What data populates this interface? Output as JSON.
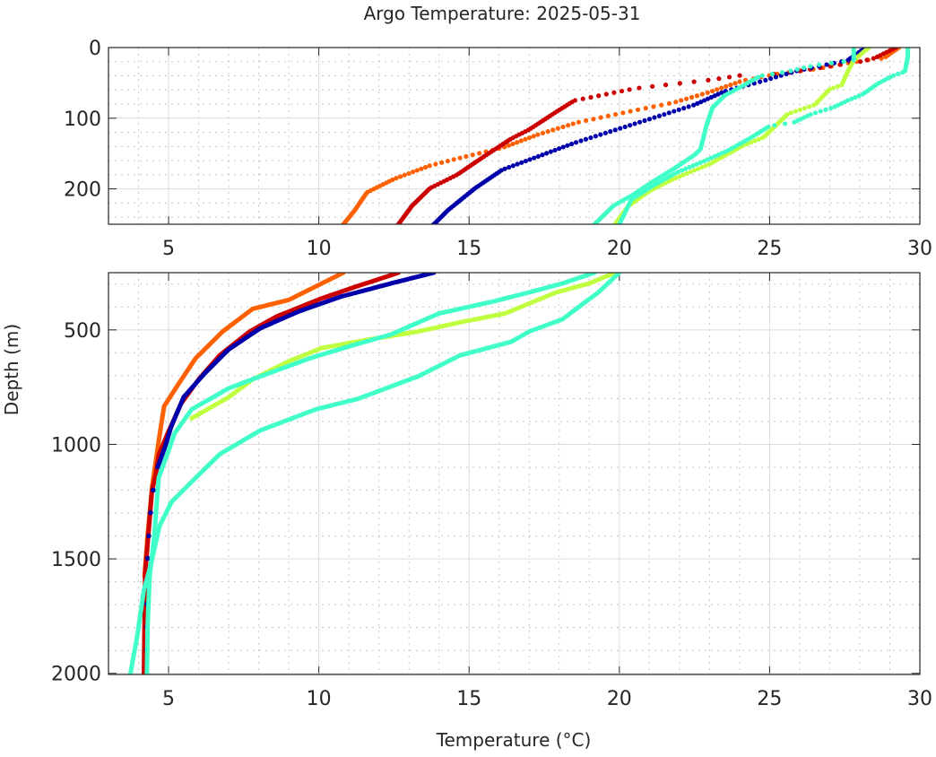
{
  "chart_data": {
    "type": "scatter",
    "title": "Argo Temperature: 2025-05-31",
    "xlabel": "Temperature (°C)",
    "ylabel": "Depth (m)",
    "grid": true,
    "panels": [
      {
        "name": "upper",
        "xlim": [
          3,
          30
        ],
        "ylim": [
          0,
          250
        ],
        "xticks": [
          5,
          10,
          15,
          20,
          25,
          30
        ],
        "yticks": [
          0,
          100,
          200
        ],
        "yminor_step": 20
      },
      {
        "name": "lower",
        "xlim": [
          3,
          30
        ],
        "ylim": [
          250,
          2005
        ],
        "xticks": [
          5,
          10,
          15,
          20,
          25,
          30
        ],
        "yticks": [
          500,
          1000,
          1500,
          2000
        ],
        "yminor_step": 100
      }
    ],
    "xminor_step": 1,
    "series": [
      {
        "name": "profile-orange",
        "color": "#ff6000",
        "points": [
          [
            29.3,
            0
          ],
          [
            28.8,
            15
          ],
          [
            28.0,
            19
          ],
          [
            26.6,
            30
          ],
          [
            25.3,
            37
          ],
          [
            24.1,
            47
          ],
          [
            23.0,
            63
          ],
          [
            21.8,
            78
          ],
          [
            20.5,
            89
          ],
          [
            18.6,
            106
          ],
          [
            17.3,
            123
          ],
          [
            16.1,
            142
          ],
          [
            14.9,
            154
          ],
          [
            13.7,
            167
          ],
          [
            12.5,
            186
          ],
          [
            11.6,
            205
          ],
          [
            11.2,
            230
          ],
          [
            10.8,
            251
          ],
          [
            10.1,
            297
          ],
          [
            9.0,
            369
          ],
          [
            7.8,
            408
          ],
          [
            6.8,
            507
          ],
          [
            5.9,
            624
          ],
          [
            5.3,
            742
          ],
          [
            4.85,
            834
          ],
          [
            4.68,
            978
          ],
          [
            4.45,
            1187
          ],
          [
            4.3,
            1400
          ],
          [
            4.2,
            1576
          ]
        ]
      },
      {
        "name": "profile-red",
        "color": "#cc0000",
        "points": [
          [
            29.2,
            0
          ],
          [
            28.5,
            15
          ],
          [
            28.0,
            20
          ],
          [
            25.4,
            37
          ],
          [
            24.1,
            39
          ],
          [
            23.0,
            46
          ],
          [
            21.5,
            53
          ],
          [
            20.5,
            58
          ],
          [
            19.1,
            70
          ],
          [
            18.5,
            75
          ],
          [
            17.9,
            91
          ],
          [
            17.0,
            116
          ],
          [
            16.4,
            129
          ],
          [
            15.5,
            154
          ],
          [
            14.6,
            180
          ],
          [
            13.7,
            199
          ],
          [
            13.1,
            224
          ],
          [
            12.63,
            251
          ],
          [
            11.26,
            310
          ],
          [
            10.1,
            362
          ],
          [
            8.6,
            441
          ],
          [
            7.7,
            507
          ],
          [
            6.7,
            611
          ],
          [
            6.0,
            716
          ],
          [
            5.42,
            821
          ],
          [
            4.97,
            952
          ],
          [
            4.68,
            1043
          ],
          [
            4.57,
            1135
          ],
          [
            4.45,
            1200
          ],
          [
            4.22,
            1564
          ],
          [
            4.18,
            2000
          ]
        ]
      },
      {
        "name": "profile-blue",
        "color": "#0000aa",
        "points": [
          [
            28.2,
            0
          ],
          [
            27.6,
            18
          ],
          [
            25.9,
            33
          ],
          [
            24.8,
            47
          ],
          [
            23.5,
            62
          ],
          [
            22.5,
            81
          ],
          [
            20.5,
            108
          ],
          [
            18.5,
            135
          ],
          [
            17.3,
            154
          ],
          [
            16.1,
            173
          ],
          [
            15.2,
            199
          ],
          [
            14.3,
            230
          ],
          [
            13.83,
            250
          ],
          [
            12.4,
            297
          ],
          [
            10.7,
            356
          ],
          [
            9.3,
            421
          ],
          [
            8.05,
            493
          ],
          [
            7.0,
            585
          ],
          [
            6.2,
            690
          ],
          [
            5.5,
            794
          ],
          [
            5.08,
            925
          ],
          [
            4.9,
            1004
          ],
          [
            4.64,
            1099
          ],
          [
            4.49,
            1200
          ],
          [
            4.4,
            1298
          ],
          [
            4.34,
            1400
          ],
          [
            4.31,
            1498
          ],
          [
            4.29,
            1600
          ],
          [
            4.28,
            1697
          ],
          [
            4.28,
            1797
          ],
          [
            4.28,
            1897
          ]
        ],
        "sparse_below": 1100
      },
      {
        "name": "profile-yellowgreen",
        "color": "#c0ff40",
        "points": [
          [
            28.3,
            0
          ],
          [
            27.8,
            18
          ],
          [
            27.6,
            34
          ],
          [
            27.4,
            53
          ],
          [
            27.0,
            59
          ],
          [
            26.5,
            81
          ],
          [
            25.6,
            94
          ],
          [
            24.8,
            127
          ],
          [
            24.1,
            139
          ],
          [
            23.0,
            165
          ],
          [
            21.8,
            186
          ],
          [
            21.0,
            203
          ],
          [
            20.3,
            224
          ],
          [
            19.84,
            251
          ],
          [
            19.0,
            297
          ],
          [
            17.9,
            336
          ],
          [
            16.2,
            428
          ],
          [
            14.7,
            467
          ],
          [
            13.3,
            507
          ],
          [
            11.5,
            546
          ],
          [
            10.1,
            579
          ],
          [
            9.0,
            637
          ],
          [
            7.8,
            716
          ],
          [
            7.0,
            794
          ],
          [
            5.77,
            886
          ]
        ]
      },
      {
        "name": "profile-cyan-a",
        "color": "#40ffc8",
        "points": [
          [
            27.8,
            0
          ],
          [
            27.8,
            18
          ],
          [
            26.5,
            25
          ],
          [
            25.6,
            34
          ],
          [
            24.7,
            40
          ],
          [
            23.9,
            59
          ],
          [
            23.5,
            68
          ],
          [
            23.1,
            85
          ],
          [
            22.9,
            110
          ],
          [
            22.7,
            144
          ],
          [
            22.5,
            152
          ],
          [
            21.9,
            169
          ],
          [
            21.1,
            190
          ],
          [
            20.5,
            207
          ],
          [
            19.8,
            224
          ],
          [
            19.15,
            251
          ],
          [
            18.1,
            297
          ],
          [
            17.0,
            336
          ],
          [
            15.8,
            376
          ],
          [
            14.0,
            428
          ],
          [
            12.4,
            520
          ],
          [
            11.0,
            572
          ],
          [
            9.7,
            624
          ],
          [
            8.05,
            703
          ],
          [
            7.0,
            755
          ],
          [
            5.77,
            847
          ],
          [
            5.2,
            952
          ],
          [
            5.03,
            1016
          ],
          [
            4.67,
            1146
          ],
          [
            4.52,
            1407
          ],
          [
            4.37,
            1576
          ],
          [
            4.3,
            1800
          ],
          [
            4.28,
            2000
          ]
        ]
      },
      {
        "name": "profile-cyan-b",
        "color": "#40ffc8",
        "points": [
          [
            29.6,
            0
          ],
          [
            29.6,
            13
          ],
          [
            29.5,
            34
          ],
          [
            29.1,
            40
          ],
          [
            28.6,
            51
          ],
          [
            28.1,
            66
          ],
          [
            27.6,
            75
          ],
          [
            27.1,
            85
          ],
          [
            26.4,
            94
          ],
          [
            25.8,
            106
          ],
          [
            25.0,
            111
          ],
          [
            24.4,
            127
          ],
          [
            23.6,
            146
          ],
          [
            22.8,
            161
          ],
          [
            21.9,
            177
          ],
          [
            21.1,
            196
          ],
          [
            20.4,
            215
          ],
          [
            20.0,
            250
          ],
          [
            19.3,
            336
          ],
          [
            18.1,
            454
          ],
          [
            17.0,
            507
          ],
          [
            16.4,
            552
          ],
          [
            14.7,
            611
          ],
          [
            13.3,
            703
          ],
          [
            11.3,
            801
          ],
          [
            9.9,
            847
          ],
          [
            8.05,
            939
          ],
          [
            6.7,
            1043
          ],
          [
            6.6,
            1056
          ],
          [
            5.9,
            1146
          ],
          [
            5.1,
            1251
          ],
          [
            4.7,
            1356
          ],
          [
            4.43,
            1513
          ],
          [
            4.17,
            1642
          ],
          [
            3.97,
            1826
          ],
          [
            3.73,
            2002
          ]
        ]
      }
    ]
  }
}
